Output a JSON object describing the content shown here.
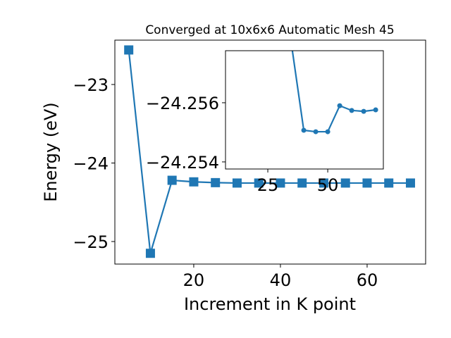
{
  "chart_data": [
    {
      "type": "line",
      "title": "Converged at 10x6x6 Automatic Mesh 45",
      "x_label": "Increment in K point",
      "y_label": "Energy (eV)",
      "x": [
        5,
        10,
        15,
        20,
        25,
        30,
        35,
        40,
        45,
        50,
        55,
        60,
        65,
        70
      ],
      "series": [
        {
          "color": "#1f77b4",
          "marker": "square",
          "values": [
            -22.56,
            -25.15,
            -24.22,
            -24.24,
            -24.25,
            -24.255,
            -24.255,
            -24.255,
            -24.255,
            -24.255,
            -24.255,
            -24.255,
            -24.255,
            -24.255
          ]
        }
      ],
      "xlim": [
        1.8,
        73.5
      ],
      "ylim": [
        -25.287,
        -22.435
      ],
      "xticks": [
        20,
        40,
        60
      ],
      "yticks": [
        {
          "value": -25,
          "label": "−25"
        },
        {
          "value": -24,
          "label": "−24"
        },
        {
          "value": -23,
          "label": "−23"
        }
      ]
    },
    {
      "type": "line",
      "x": [
        35,
        40,
        45,
        50,
        55,
        60,
        65,
        70
      ],
      "series": [
        {
          "color": "#1f77b4",
          "marker": "circle",
          "values": [
            -24.2579,
            -24.25507,
            -24.25502,
            -24.25502,
            -24.2559,
            -24.25574,
            -24.25571,
            -24.25576
          ]
        }
      ],
      "xlim": [
        7.35,
        73.2
      ],
      "ylim": [
        -24.25376,
        -24.25776
      ],
      "xticks": [
        25,
        50
      ],
      "yticks": [
        {
          "value": -24.254,
          "label": "−24.254"
        },
        {
          "value": -24.256,
          "label": "−24.256"
        }
      ]
    }
  ]
}
